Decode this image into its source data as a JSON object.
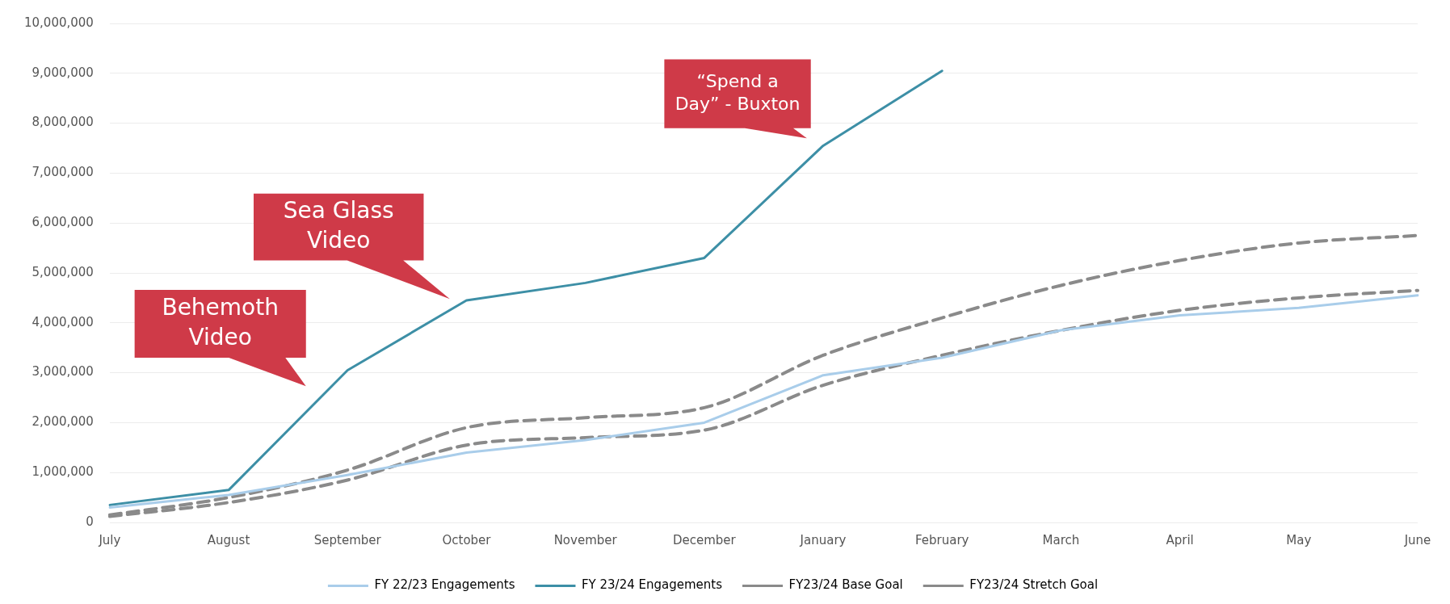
{
  "chart_data": {
    "type": "line",
    "categories": [
      "July",
      "August",
      "September",
      "October",
      "November",
      "December",
      "January",
      "February",
      "March",
      "April",
      "May",
      "June"
    ],
    "series": [
      {
        "name": "FY 22/23 Engagements",
        "color": "#a9cdea",
        "line_style": "solid",
        "values": [
          300000,
          550000,
          950000,
          1400000,
          1650000,
          2000000,
          2950000,
          3300000,
          3850000,
          4150000,
          4300000,
          4550000
        ]
      },
      {
        "name": "FY 23/24 Engagements",
        "color": "#3d8fa6",
        "line_style": "solid",
        "values": [
          350000,
          650000,
          3050000,
          4450000,
          4800000,
          5300000,
          7550000,
          9050000,
          null,
          null,
          null,
          null
        ]
      },
      {
        "name": "FY23/24 Base Goal",
        "color": "#8a8a8a",
        "line_style": "dashed",
        "values": [
          120000,
          400000,
          850000,
          1550000,
          1700000,
          1850000,
          2750000,
          3350000,
          3850000,
          4250000,
          4500000,
          4650000
        ]
      },
      {
        "name": "FY23/24 Stretch Goal",
        "color": "#8a8a8a",
        "line_style": "dashed",
        "values": [
          150000,
          500000,
          1050000,
          1900000,
          2100000,
          2300000,
          3350000,
          4100000,
          4750000,
          5250000,
          5600000,
          5750000
        ]
      }
    ],
    "ylim": [
      0,
      10000000
    ],
    "yticks": [
      0,
      {
        "value": 1000000,
        "label": "1,000,000"
      },
      {
        "value": 2000000,
        "label": "2,000,000"
      },
      {
        "value": 3000000,
        "label": "3,000,000"
      },
      {
        "value": 4000000,
        "label": "4,000,000"
      },
      {
        "value": 5000000,
        "label": "5,000,000"
      },
      {
        "value": 6000000,
        "label": "6,000,000"
      },
      {
        "value": 7000000,
        "label": "7,000,000"
      },
      {
        "value": 8000000,
        "label": "8,000,000"
      },
      {
        "value": 9000000,
        "label": "9,000,000"
      },
      {
        "value": 10000000,
        "label": "10,000,000"
      }
    ],
    "annotations": [
      "Behemoth Video",
      "Sea Glass Video",
      "“Spend a Day” - Buxton"
    ],
    "grid": "y",
    "legend": "bottom",
    "marker": "none"
  }
}
